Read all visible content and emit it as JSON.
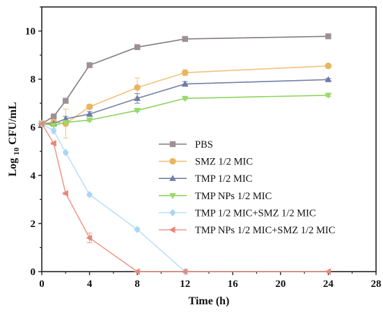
{
  "chart_data": {
    "type": "line",
    "xlabel": "Time (h)",
    "ylabel_main": "Log",
    "ylabel_sub": "10",
    "ylabel_rest": " CFU/mL",
    "xlim": [
      0,
      28
    ],
    "ylim": [
      0,
      11
    ],
    "xticks": [
      0,
      4,
      8,
      12,
      16,
      20,
      24,
      28
    ],
    "yticks": [
      0,
      2,
      4,
      6,
      8,
      10
    ],
    "grid": false,
    "legend_position": "center-right",
    "series": [
      {
        "name": "PBS",
        "marker": "square",
        "color": "#847b82",
        "marker_color": "#9d8f96",
        "x": [
          0,
          1,
          2,
          4,
          8,
          12,
          24
        ],
        "y": [
          6.15,
          6.45,
          7.1,
          8.58,
          9.33,
          9.67,
          9.78
        ],
        "err": [
          0,
          0.08,
          0.08,
          0.05,
          0.05,
          0.05,
          0.05
        ]
      },
      {
        "name": "SMZ 1/2 MIC",
        "marker": "circle",
        "color": "#f0c27a",
        "marker_color": "#eab560",
        "x": [
          0,
          1,
          2,
          4,
          8,
          12,
          24
        ],
        "y": [
          6.15,
          6.22,
          6.15,
          6.85,
          7.65,
          8.27,
          8.55
        ],
        "err": [
          0,
          0.1,
          0.6,
          0.1,
          0.4,
          0.12,
          0.05
        ]
      },
      {
        "name": "TMP 1/2 MIC",
        "marker": "triangle-up",
        "color": "#737fa6",
        "marker_color": "#6e7ba6",
        "x": [
          0,
          1,
          2,
          4,
          8,
          12,
          24
        ],
        "y": [
          6.15,
          6.15,
          6.35,
          6.55,
          7.2,
          7.8,
          7.98
        ],
        "err": [
          0,
          0.05,
          0.1,
          0.1,
          0.2,
          0.1,
          0.05
        ]
      },
      {
        "name": "TMP NPs 1/2 MIC",
        "marker": "triangle-down",
        "color": "#8ed35d",
        "marker_color": "#96d96a",
        "x": [
          0,
          1,
          2,
          4,
          8,
          12,
          24
        ],
        "y": [
          6.15,
          6.08,
          6.2,
          6.3,
          6.7,
          7.2,
          7.33
        ],
        "err": [
          0,
          0.05,
          0.05,
          0.05,
          0.05,
          0.05,
          0.05
        ]
      },
      {
        "name": "TMP 1/2 MIC+SMZ 1/2 MIC",
        "marker": "diamond",
        "color": "#bde0f7",
        "marker_color": "#a8d6f5",
        "x": [
          0,
          1,
          2,
          4,
          8,
          12
        ],
        "y": [
          6.15,
          5.85,
          4.95,
          3.2,
          1.75,
          0
        ],
        "err": [
          0,
          0.1,
          0.05,
          0.05,
          0.05,
          0
        ]
      },
      {
        "name": "TMP NPs 1/2 MIC+SMZ 1/2 MIC",
        "marker": "triangle-left",
        "color": "#ee9b8e",
        "marker_color": "#e58878",
        "x": [
          0,
          1,
          2,
          4,
          8,
          12,
          24
        ],
        "y": [
          6.15,
          5.33,
          3.25,
          1.4,
          0,
          0,
          0
        ],
        "err": [
          0,
          0.05,
          0.05,
          0.2,
          0,
          0,
          0
        ]
      }
    ]
  }
}
